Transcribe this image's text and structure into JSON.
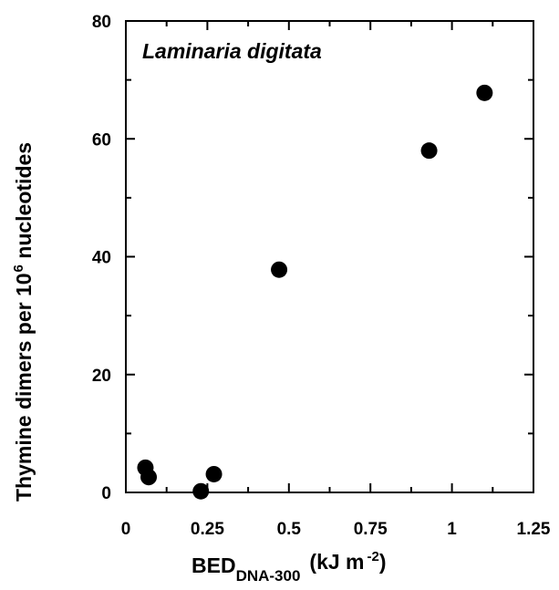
{
  "chart_data": {
    "type": "scatter",
    "title": "",
    "annotation": "Laminaria digitata",
    "xlabel": {
      "main": "BED",
      "subscript": "DNA-300",
      "unit_prefix": "(kJ m",
      "unit_superscript": "-2",
      "unit_suffix": ")"
    },
    "ylabel": {
      "prefix": "Thymine dimers per 10",
      "superscript": "6",
      "suffix": " nucleotides"
    },
    "xlim": [
      0,
      1.25
    ],
    "ylim": [
      0,
      80
    ],
    "x_ticks": [
      0,
      0.25,
      0.5,
      0.75,
      1,
      1.25
    ],
    "x_tick_labels": [
      "0",
      "0.25",
      "0.5",
      "0.75",
      "1",
      "1.25"
    ],
    "y_ticks": [
      0,
      20,
      40,
      60,
      80
    ],
    "y_tick_labels": [
      "0",
      "20",
      "40",
      "60",
      "80"
    ],
    "grid": false,
    "marker_color": "#000000",
    "points": [
      {
        "x": 0.06,
        "y": 4.2
      },
      {
        "x": 0.07,
        "y": 2.6
      },
      {
        "x": 0.23,
        "y": 0.2
      },
      {
        "x": 0.27,
        "y": 3.1
      },
      {
        "x": 0.47,
        "y": 37.8
      },
      {
        "x": 0.93,
        "y": 58.0
      },
      {
        "x": 1.1,
        "y": 67.8
      }
    ]
  }
}
